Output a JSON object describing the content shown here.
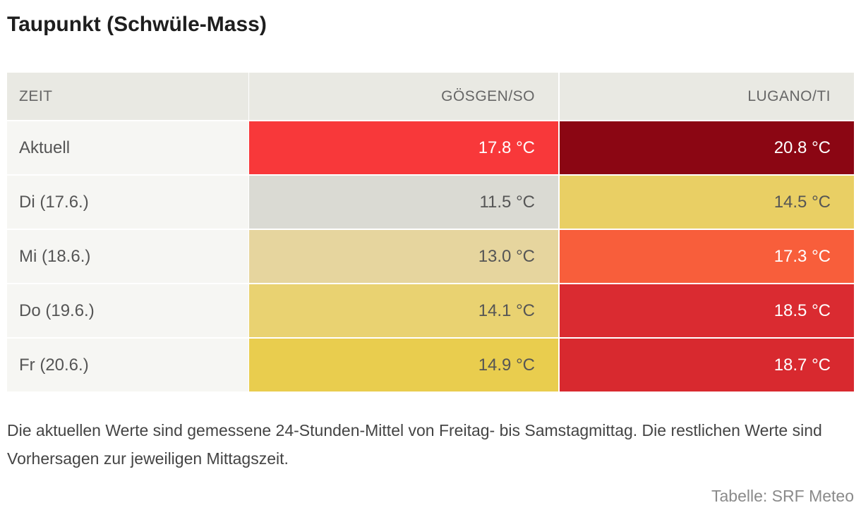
{
  "title": "Taupunkt (Schwüle-Mass)",
  "chart_data": {
    "type": "table",
    "title": "Taupunkt (Schwüle-Mass)",
    "columns": [
      "ZEIT",
      "GÖSGEN/SO",
      "LUGANO/TI"
    ],
    "unit": "°C",
    "rows": [
      {
        "zeit": "Aktuell",
        "values": [
          17.8,
          20.8
        ],
        "labels": [
          "17.8 °C",
          "20.8 °C"
        ],
        "colors": [
          "#f8383a",
          "#8b0613"
        ]
      },
      {
        "zeit": "Di (17.6.)",
        "values": [
          11.5,
          14.5
        ],
        "labels": [
          "11.5 °C",
          "14.5 °C"
        ],
        "colors": [
          "#dadad3",
          "#e9cf64"
        ]
      },
      {
        "zeit": "Mi (18.6.)",
        "values": [
          13.0,
          17.3
        ],
        "labels": [
          "13.0 °C",
          "17.3 °C"
        ],
        "colors": [
          "#e6d59e",
          "#f85e3b"
        ]
      },
      {
        "zeit": "Do (19.6.)",
        "values": [
          14.1,
          18.5
        ],
        "labels": [
          "14.1 °C",
          "18.5 °C"
        ],
        "colors": [
          "#e9d271",
          "#da2b31"
        ]
      },
      {
        "zeit": "Fr (20.6.)",
        "values": [
          14.9,
          18.7
        ],
        "labels": [
          "14.9 °C",
          "18.7 °C"
        ],
        "colors": [
          "#e9cd4e",
          "#d8292f"
        ]
      }
    ]
  },
  "note": "Die aktuellen Werte sind gemessene 24-Stunden-Mittel von Freitag- bis Samstagmittag. Die restlichen Werte sind Vorhersagen zur jeweiligen Mittagszeit.",
  "source": "Tabelle: SRF Meteo"
}
